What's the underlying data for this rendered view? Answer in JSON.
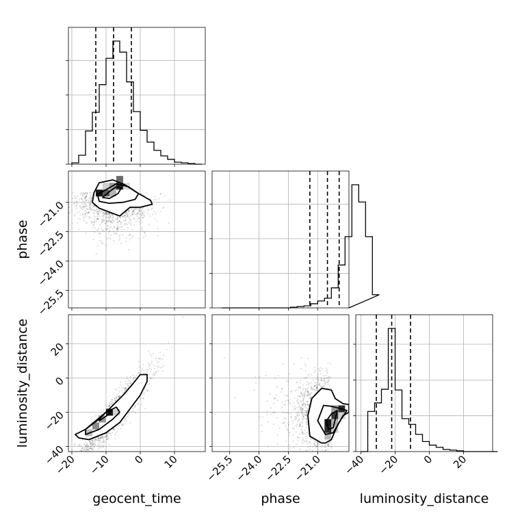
{
  "chart_data": {
    "type": "corner",
    "parameters": [
      "geocent_time",
      "phase",
      "luminosity_distance"
    ],
    "axis_labels": {
      "geocent_time": "geocent_time",
      "phase": "phase",
      "luminosity_distance": "luminosity_distance"
    },
    "ranges": {
      "geocent_time": [
        -21,
        19
      ],
      "phase": [
        -26.4,
        -19.4
      ],
      "luminosity_distance": [
        -43,
        37
      ]
    },
    "ticks": {
      "geocent_time": [
        -20,
        -10,
        0,
        10
      ],
      "phase": [
        -25.5,
        -24.0,
        -22.5,
        -21.0
      ],
      "luminosity_distance": [
        -40,
        -20,
        0,
        20
      ]
    },
    "tick_labels": {
      "geocent_time": [
        "−20",
        "−10",
        "0",
        "10"
      ],
      "phase": [
        "−25.5",
        "−24.0",
        "−22.5",
        "−21.0"
      ],
      "luminosity_distance": [
        "−40",
        "−20",
        "0",
        "20"
      ]
    },
    "quantiles": {
      "geocent_time": [
        -13.0,
        -7.8,
        -2.6
      ],
      "phase": [
        -21.4,
        -20.5,
        -19.9
      ],
      "luminosity_distance": [
        -31,
        -22,
        -11
      ]
    },
    "histograms": {
      "geocent_time": {
        "bin_start": -20,
        "bin_width": 2,
        "counts": [
          2,
          13,
          48,
          75,
          115,
          153,
          178,
          162,
          119,
          76,
          49,
          32,
          20,
          12,
          7,
          3,
          2,
          1,
          0
        ]
      },
      "phase": {
        "bin_start": -25.9,
        "bin_width": 0.35,
        "counts": [
          0,
          0,
          0,
          0,
          0,
          0,
          0,
          0,
          0,
          0,
          1,
          2,
          3,
          6,
          10,
          14,
          29,
          62,
          103,
          178,
          153,
          103,
          19
        ]
      },
      "luminosity_distance": {
        "bin_start": -40,
        "bin_width": 4,
        "counts": [
          0,
          56,
          68,
          87,
          172,
          86,
          46,
          38,
          24,
          14,
          9,
          6,
          3,
          2,
          1,
          0,
          0,
          0,
          0,
          0
        ]
      }
    },
    "grid": true,
    "legend": "none"
  }
}
